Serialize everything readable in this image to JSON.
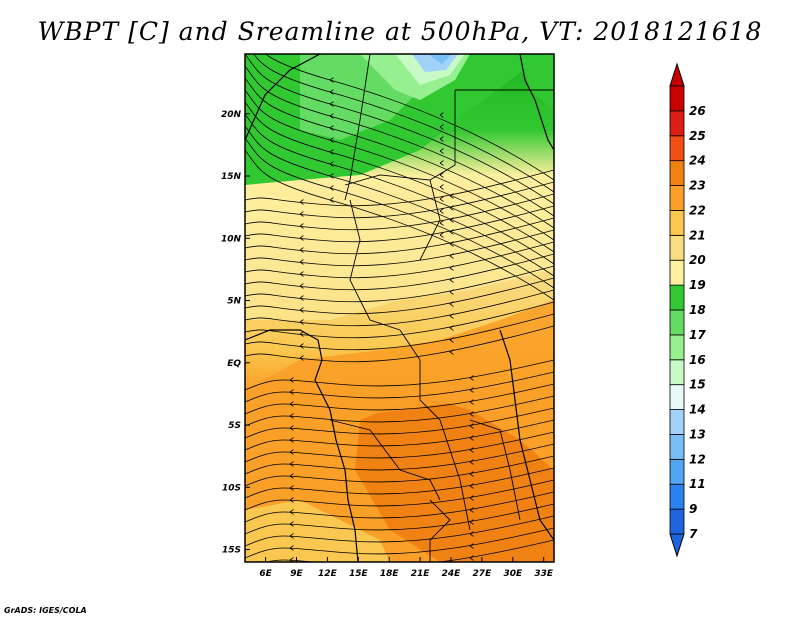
{
  "title": "WBPT [C] and Sreamline at 500hPa, VT: 2018121618",
  "credit": "GrADS: IGES/COLA",
  "map": {
    "lon_ticks": [
      "6E",
      "9E",
      "12E",
      "15E",
      "18E",
      "21E",
      "24E",
      "27E",
      "30E",
      "33E"
    ],
    "lon_values": [
      6,
      9,
      12,
      15,
      18,
      21,
      24,
      27,
      30,
      33
    ],
    "lat_ticks": [
      "20N",
      "15N",
      "10N",
      "5N",
      "EQ",
      "5S",
      "10S",
      "15S"
    ],
    "lat_values": [
      20,
      15,
      10,
      5,
      0,
      -5,
      -10,
      -15
    ],
    "lon_range": [
      4,
      34
    ],
    "lat_range": [
      -16,
      24.8
    ]
  },
  "colorbar": {
    "labels": [
      "7",
      "9",
      "11",
      "12",
      "13",
      "14",
      "15",
      "16",
      "17",
      "18",
      "19",
      "20",
      "21",
      "22",
      "23",
      "24",
      "25",
      "26"
    ],
    "colors": [
      "#1e64dc",
      "#2a82f0",
      "#50a5f5",
      "#78bef8",
      "#a0d2fa",
      "#e6fafa",
      "#c8fac8",
      "#96f090",
      "#64dc64",
      "#32c832",
      "#fff0a0",
      "#fadc82",
      "#fac850",
      "#faa028",
      "#f08214",
      "#f05014",
      "#dc1e14",
      "#c80000"
    ]
  }
}
